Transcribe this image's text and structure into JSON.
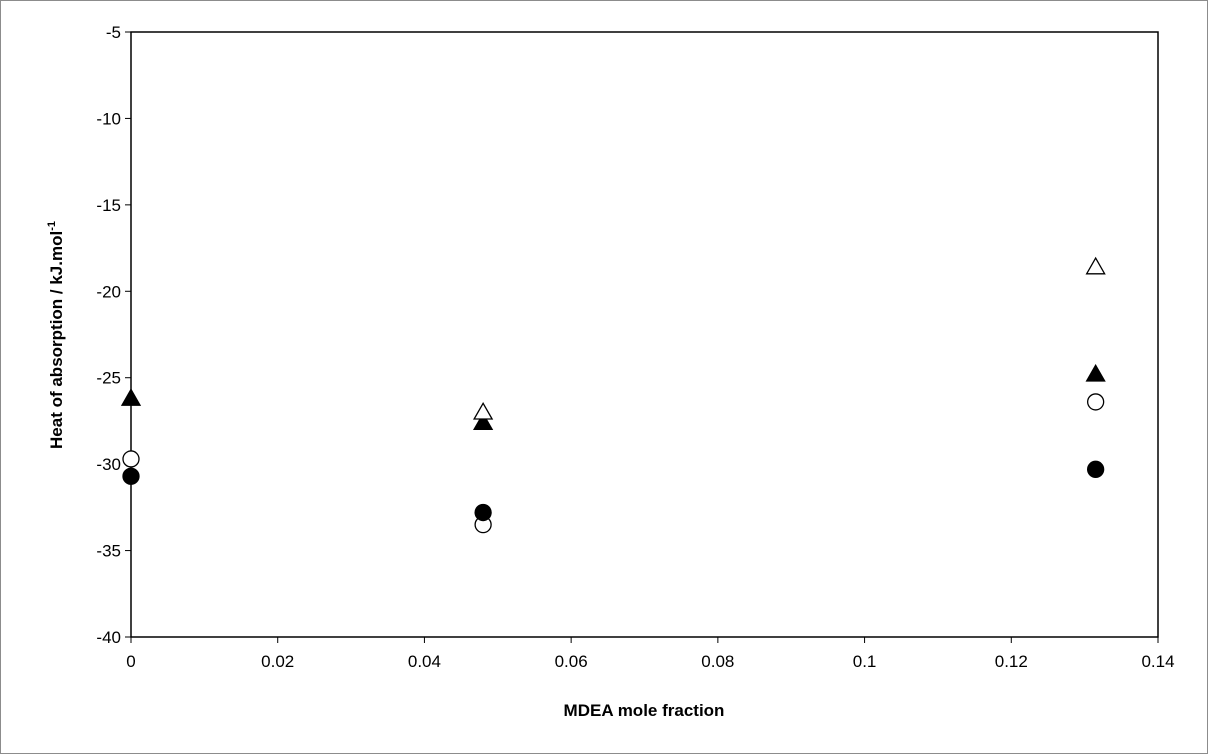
{
  "chart_data": {
    "type": "scatter",
    "title": "",
    "xlabel": "MDEA mole fraction",
    "ylabel": "Heat of absorption / kJ.mol",
    "ylabel_sup": "-1",
    "xlim": [
      0,
      0.14
    ],
    "ylim": [
      -40,
      -5
    ],
    "x_ticks": [
      0,
      0.02,
      0.04,
      0.06,
      0.08,
      0.1,
      0.12,
      0.14
    ],
    "x_tick_labels": [
      "0",
      "0.02",
      "0.04",
      "0.06",
      "0.08",
      "0.1",
      "0.12",
      "0.14"
    ],
    "y_ticks": [
      -40,
      -35,
      -30,
      -25,
      -20,
      -15,
      -10,
      -5
    ],
    "y_tick_labels": [
      "-40",
      "-35",
      "-30",
      "-25",
      "-20",
      "-15",
      "-10",
      "-5"
    ],
    "grid": false,
    "legend": "none",
    "series": [
      {
        "marker": "filled-triangle",
        "x": [
          0,
          0.048,
          0.1315
        ],
        "y": [
          -26.2,
          -27.6,
          -24.8
        ]
      },
      {
        "marker": "open-triangle",
        "x": [
          0.048,
          0.1315
        ],
        "y": [
          -27.0,
          -18.6
        ]
      },
      {
        "marker": "open-circle",
        "x": [
          0,
          0.048,
          0.1315
        ],
        "y": [
          -29.7,
          -33.5,
          -26.4
        ]
      },
      {
        "marker": "filled-circle",
        "x": [
          0,
          0.048,
          0.1315
        ],
        "y": [
          -30.7,
          -32.8,
          -30.3
        ]
      }
    ]
  }
}
